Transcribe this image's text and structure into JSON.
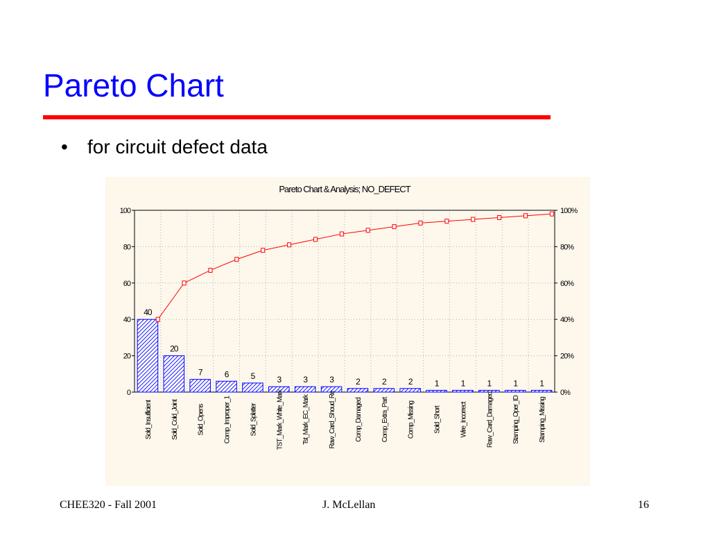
{
  "slide": {
    "title": "Pareto Chart",
    "bullet_symbol": "•",
    "bullet_text": "for circuit defect data"
  },
  "footer": {
    "left": "CHEE320 - Fall 2001",
    "center": "J. McLellan",
    "right": "16"
  },
  "colors": {
    "title": "#0000ff",
    "rule": "#ff0000",
    "bars": "#0000ff",
    "cumulative_line": "#ff0000",
    "panel_background": "#fdf7ec"
  },
  "chart_data": {
    "type": "bar",
    "title": "Pareto Chart & Analysis; NO_DEFECT",
    "categories": [
      "Sold_Insufficient",
      "Sold_Cold_Joint",
      "Sold_Opens",
      "Comp_Improper_1",
      "Sold_Splatter",
      "TST_Mark_White_Mark",
      "Tst_Mark_EC_Mark",
      "Raw_Card_Shoud_Re",
      "Comp_Damaged",
      "Comp_Extra_Part",
      "Comp_Missing",
      "Sold_Short",
      "Wire_Incorrect",
      "Raw_Card_Damaged",
      "Stamping_Oper_ID",
      "Stamping_Missing"
    ],
    "series": [
      {
        "values": [
          40,
          20,
          7,
          6,
          5,
          3,
          3,
          3,
          2,
          2,
          2,
          1,
          1,
          1,
          1,
          1
        ]
      },
      {
        "values": [
          40,
          60,
          67,
          73,
          78,
          81,
          84,
          87,
          89,
          91,
          93,
          94,
          95,
          96,
          97,
          98
        ]
      }
    ],
    "data_labels": [
      "40",
      "20",
      "7",
      "6",
      "5",
      "3",
      "3",
      "3",
      "2",
      "2",
      "2",
      "1",
      "1",
      "1",
      "1",
      "1"
    ],
    "y_ticks": [
      "0",
      "20",
      "40",
      "60",
      "80",
      "100"
    ],
    "y2_ticks": [
      "0%",
      "20%",
      "40%",
      "60%",
      "80%",
      "100%"
    ],
    "ylim": [
      0,
      100
    ],
    "y2lim": [
      "0%",
      "100%"
    ],
    "grid": true,
    "bar_fill": "hatched"
  }
}
